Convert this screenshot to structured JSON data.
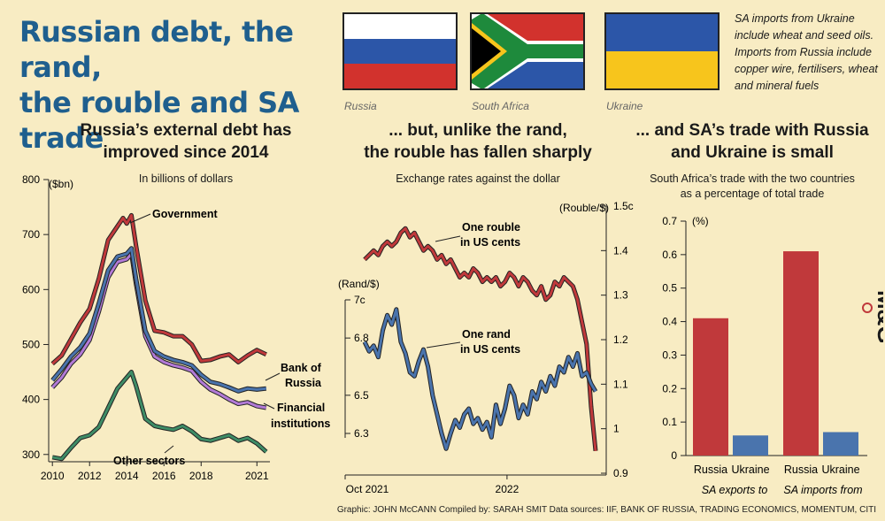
{
  "header": {
    "title_line1": "Russian debt, the rand,",
    "title_line2": "the rouble and SA trade",
    "flags": [
      {
        "label": "Russia",
        "colors": [
          "#ffffff",
          "#2c56a8",
          "#d2322d"
        ]
      },
      {
        "label": "South Africa",
        "colors": [
          "#d2322d",
          "#2c56a8",
          "#1e8a3c",
          "#f7c51c",
          "#000000",
          "#ffffff"
        ]
      },
      {
        "label": "Ukraine",
        "colors": [
          "#2c56a8",
          "#f7c51c"
        ]
      }
    ],
    "note": "SA imports from Ukraine include wheat and seed oils. Imports from Russia include copper wire, fertilisers, wheat and mineral fuels"
  },
  "panel1": {
    "title_line1": "Russia’s external debt has",
    "title_line2": "improved since 2014",
    "subtitle": "In billions of dollars"
  },
  "panel2": {
    "title_line1": "... but, unlike the rand,",
    "title_line2": "the rouble has fallen sharply",
    "subtitle": "Exchange rates against the dollar"
  },
  "panel3": {
    "title_line1": "... and SA’s trade with Russia",
    "title_line2": "and Ukraine is small",
    "subtitle_line1": "South Africa’s trade with the two countries",
    "subtitle_line2": "as a percentage of total trade"
  },
  "footer": "Graphic: JOHN McCANN  Compiled by: SARAH SMIT  Data sources: IIF, BANK OF RUSSIA, TRADING ECONOMICS, MOMENTUM, CITI",
  "logo": "M&G",
  "colors": {
    "red": "#c0393b",
    "blue": "#4a74ad",
    "purple": "#b27ad6",
    "green": "#3e8c66",
    "title_blue": "#1f5f8e",
    "background": "#f8ecc3"
  },
  "chart_data": [
    {
      "type": "line",
      "ylabel": "($bn)",
      "ylim": [
        290,
        800
      ],
      "y_ticks": [
        300,
        400,
        500,
        600,
        700,
        800
      ],
      "x_ticks": [
        "2010",
        "2012",
        "2014",
        "2016",
        "2018",
        "2021"
      ],
      "x_tick_values": [
        2010,
        2012,
        2014,
        2016,
        2018,
        2021
      ],
      "xlim": [
        2009.8,
        2021.7
      ],
      "series": [
        {
          "name": "Government",
          "color": "#c0393b",
          "x": [
            2010,
            2010.5,
            2011,
            2011.5,
            2012,
            2012.5,
            2013,
            2013.5,
            2013.8,
            2014,
            2014.25,
            2014.5,
            2015,
            2015.5,
            2016,
            2016.5,
            2017,
            2017.5,
            2018,
            2018.5,
            2019,
            2019.5,
            2020,
            2020.5,
            2021,
            2021.5
          ],
          "y": [
            465,
            480,
            510,
            540,
            565,
            620,
            690,
            715,
            730,
            720,
            735,
            680,
            580,
            525,
            522,
            515,
            515,
            500,
            470,
            472,
            478,
            482,
            468,
            480,
            490,
            482
          ]
        },
        {
          "name": "Bank of Russia",
          "color": "#4a74ad",
          "x": [
            2010,
            2010.5,
            2011,
            2011.5,
            2012,
            2012.5,
            2013,
            2013.5,
            2014,
            2014.25,
            2014.5,
            2015,
            2015.5,
            2016,
            2016.5,
            2017,
            2017.5,
            2018,
            2018.5,
            2019,
            2019.5,
            2020,
            2020.5,
            2021,
            2021.5
          ],
          "y": [
            435,
            455,
            478,
            495,
            520,
            575,
            635,
            660,
            665,
            675,
            620,
            525,
            488,
            478,
            472,
            468,
            462,
            445,
            432,
            428,
            422,
            415,
            420,
            418,
            420
          ]
        },
        {
          "name": "Financial institutions",
          "color": "#b27ad6",
          "x": [
            2010,
            2010.5,
            2011,
            2011.5,
            2012,
            2012.5,
            2013,
            2013.5,
            2014,
            2014.25,
            2014.5,
            2015,
            2015.5,
            2016,
            2016.5,
            2017,
            2017.5,
            2018,
            2018.5,
            2019,
            2019.5,
            2020,
            2020.5,
            2021,
            2021.5
          ],
          "y": [
            422,
            440,
            465,
            482,
            508,
            560,
            622,
            650,
            655,
            665,
            610,
            515,
            478,
            468,
            462,
            458,
            452,
            432,
            418,
            410,
            400,
            392,
            395,
            388,
            385
          ]
        },
        {
          "name": "Other sectors",
          "color": "#3e8c66",
          "x": [
            2010,
            2010.5,
            2011,
            2011.5,
            2012,
            2012.5,
            2013,
            2013.5,
            2014,
            2014.25,
            2014.5,
            2015,
            2015.5,
            2016,
            2016.5,
            2017,
            2017.5,
            2018,
            2018.5,
            2019,
            2019.5,
            2020,
            2020.5,
            2021,
            2021.5
          ],
          "y": [
            295,
            292,
            312,
            330,
            335,
            350,
            385,
            420,
            440,
            450,
            425,
            365,
            352,
            348,
            345,
            352,
            342,
            328,
            325,
            330,
            335,
            325,
            330,
            320,
            305
          ]
        }
      ]
    },
    {
      "type": "line",
      "x_ticks": [
        "Oct 2021",
        "2022"
      ],
      "left_axis": {
        "label": "(Rand/$)",
        "ticks": [
          "6.3",
          "6.5",
          "6.8",
          "7c"
        ],
        "tick_values": [
          6.3,
          6.5,
          6.8,
          7.0
        ],
        "ylim": [
          6.18,
          7.0
        ]
      },
      "right_axis": {
        "label": "(Rouble/$)",
        "ticks": [
          "0.9",
          "1",
          "1.1",
          "1.2",
          "1.3",
          "1.4",
          "1.5c"
        ],
        "tick_values": [
          0.9,
          1.0,
          1.1,
          1.2,
          1.3,
          1.4,
          1.5
        ],
        "ylim": [
          0.9,
          1.5
        ]
      },
      "series": [
        {
          "name": "One rouble in US cents",
          "color": "#c0393b",
          "axis": "right",
          "y": [
            1.38,
            1.39,
            1.4,
            1.39,
            1.41,
            1.42,
            1.41,
            1.42,
            1.44,
            1.45,
            1.43,
            1.44,
            1.42,
            1.4,
            1.41,
            1.4,
            1.38,
            1.39,
            1.37,
            1.38,
            1.36,
            1.34,
            1.35,
            1.34,
            1.36,
            1.35,
            1.33,
            1.34,
            1.33,
            1.34,
            1.32,
            1.33,
            1.35,
            1.34,
            1.32,
            1.34,
            1.33,
            1.31,
            1.3,
            1.32,
            1.29,
            1.3,
            1.33,
            1.32,
            1.34,
            1.33,
            1.32,
            1.29,
            1.24,
            1.19,
            1.05,
            0.95
          ]
        },
        {
          "name": "One rand in US cents",
          "color": "#4a74ad",
          "axis": "left",
          "y": [
            6.78,
            6.73,
            6.76,
            6.7,
            6.84,
            6.92,
            6.87,
            6.95,
            6.78,
            6.72,
            6.62,
            6.6,
            6.68,
            6.74,
            6.65,
            6.5,
            6.4,
            6.3,
            6.22,
            6.3,
            6.37,
            6.33,
            6.4,
            6.43,
            6.35,
            6.38,
            6.32,
            6.36,
            6.28,
            6.45,
            6.35,
            6.43,
            6.55,
            6.5,
            6.38,
            6.45,
            6.4,
            6.52,
            6.48,
            6.57,
            6.52,
            6.6,
            6.55,
            6.65,
            6.62,
            6.7,
            6.65,
            6.72,
            6.6,
            6.62,
            6.56,
            6.52
          ]
        }
      ],
      "annotations": [
        "One rouble",
        "in US cents",
        "One rand",
        "in US cents"
      ]
    },
    {
      "type": "bar",
      "ylabel": "(%)",
      "ylim": [
        0,
        0.7
      ],
      "y_ticks": [
        "0",
        "0.1",
        "0.2",
        "0.3",
        "0.4",
        "0.5",
        "0.6",
        "0.7"
      ],
      "categories": [
        "Russia",
        "Ukraine",
        "Russia",
        "Ukraine"
      ],
      "groups": [
        "SA exports to",
        "SA imports from"
      ],
      "values": [
        0.41,
        0.06,
        0.61,
        0.07
      ],
      "colors": [
        "#c0393b",
        "#4a74ad",
        "#c0393b",
        "#4a74ad"
      ]
    }
  ]
}
